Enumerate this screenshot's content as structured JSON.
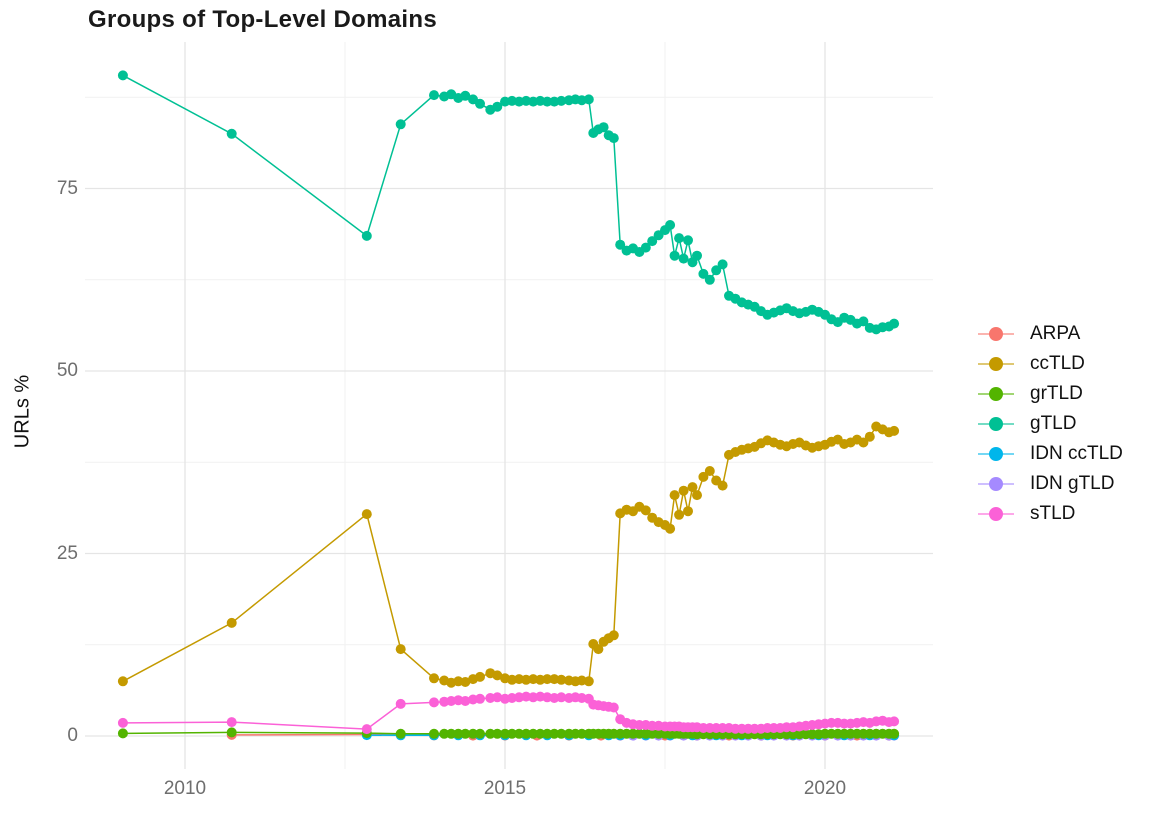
{
  "title": "Groups of Top-Level Domains",
  "axes": {
    "y_label": "URLs %",
    "y_ticks": [
      0,
      25,
      50,
      75
    ],
    "y_minor": [
      12.5,
      37.5,
      62.5,
      87.5
    ],
    "x_ticks": [
      2010,
      2015,
      2020
    ],
    "x_minor": [
      2012.5,
      2017.5
    ]
  },
  "chart_data": {
    "type": "line",
    "title": "Groups of Top-Level Domains",
    "xlabel": "",
    "ylabel": "URLs %",
    "xlim": [
      2008.43,
      2021.68
    ],
    "ylim": [
      -4.5,
      95
    ],
    "grid": true,
    "legend_position": "right",
    "series": [
      {
        "name": "ARPA",
        "color": "#F8766D",
        "x": [
          2010.73,
          2012.84,
          2013.37,
          2013.89,
          2014.5,
          2015.0,
          2015.5,
          2016.0,
          2016.5,
          2016.8,
          2017.5,
          2018.0,
          2018.5,
          2019.0,
          2019.5,
          2020.0,
          2020.5,
          2021.0
        ],
        "y": [
          0.15,
          0.2,
          0.12,
          0.08,
          0.05,
          0.05,
          0.05,
          0.05,
          0.05,
          0.05,
          0.05,
          0.05,
          0.05,
          0.05,
          0.05,
          0.05,
          0.05,
          0.05
        ]
      },
      {
        "name": "ccTLD",
        "color": "#C49A00",
        "x": [
          2009.03,
          2010.73,
          2012.84,
          2013.37,
          2013.89,
          2014.05,
          2014.16,
          2014.27,
          2014.38,
          2014.5,
          2014.61,
          2014.77,
          2014.88,
          2015.0,
          2015.11,
          2015.22,
          2015.33,
          2015.44,
          2015.55,
          2015.66,
          2015.77,
          2015.88,
          2016.0,
          2016.1,
          2016.2,
          2016.31,
          2016.38,
          2016.46,
          2016.54,
          2016.62,
          2016.7,
          2016.8,
          2016.9,
          2017.0,
          2017.1,
          2017.2,
          2017.3,
          2017.4,
          2017.5,
          2017.58,
          2017.65,
          2017.72,
          2017.79,
          2017.86,
          2017.93,
          2018.0,
          2018.1,
          2018.2,
          2018.3,
          2018.4,
          2018.5,
          2018.6,
          2018.7,
          2018.8,
          2018.9,
          2019.0,
          2019.1,
          2019.2,
          2019.3,
          2019.4,
          2019.5,
          2019.6,
          2019.7,
          2019.8,
          2019.9,
          2020.0,
          2020.1,
          2020.2,
          2020.3,
          2020.4,
          2020.5,
          2020.6,
          2020.7,
          2020.8,
          2020.9,
          2021.0,
          2021.08
        ],
        "y": [
          7.5,
          15.5,
          30.4,
          11.9,
          7.9,
          7.6,
          7.3,
          7.5,
          7.4,
          7.8,
          8.1,
          8.6,
          8.3,
          7.9,
          7.7,
          7.8,
          7.7,
          7.8,
          7.7,
          7.8,
          7.8,
          7.7,
          7.6,
          7.5,
          7.6,
          7.5,
          12.6,
          11.9,
          12.9,
          13.4,
          13.8,
          30.5,
          31.0,
          30.8,
          31.4,
          30.9,
          29.9,
          29.3,
          28.9,
          28.4,
          33.0,
          30.3,
          33.6,
          30.8,
          34.1,
          33.0,
          35.5,
          36.3,
          35.0,
          34.3,
          38.5,
          38.9,
          39.2,
          39.4,
          39.6,
          40.1,
          40.5,
          40.2,
          39.9,
          39.7,
          40.0,
          40.2,
          39.8,
          39.5,
          39.7,
          39.9,
          40.3,
          40.6,
          40.0,
          40.2,
          40.6,
          40.2,
          41.0,
          42.4,
          42.0,
          41.6,
          41.8
        ]
      },
      {
        "name": "grTLD",
        "color": "#53B400",
        "x": [
          2009.03,
          2010.73,
          2012.84,
          2013.37,
          2013.89,
          2014.05,
          2014.16,
          2014.27,
          2014.38,
          2014.5,
          2014.61,
          2014.77,
          2014.88,
          2015.0,
          2015.11,
          2015.22,
          2015.33,
          2015.44,
          2015.55,
          2015.66,
          2015.77,
          2015.88,
          2016.0,
          2016.1,
          2016.2,
          2016.31,
          2016.38,
          2016.46,
          2016.54,
          2016.62,
          2016.7,
          2016.8,
          2016.9,
          2017.0,
          2017.1,
          2017.2,
          2017.3,
          2017.4,
          2017.5,
          2017.58,
          2017.65,
          2017.72,
          2017.79,
          2017.86,
          2017.93,
          2018.0,
          2018.1,
          2018.2,
          2018.3,
          2018.4,
          2018.5,
          2018.6,
          2018.7,
          2018.8,
          2018.9,
          2019.0,
          2019.1,
          2019.2,
          2019.3,
          2019.4,
          2019.5,
          2019.6,
          2019.7,
          2019.8,
          2019.9,
          2020.0,
          2020.1,
          2020.2,
          2020.3,
          2020.4,
          2020.5,
          2020.6,
          2020.7,
          2020.8,
          2020.9,
          2021.0,
          2021.08
        ],
        "y": [
          0.35,
          0.5,
          0.4,
          0.3,
          0.3,
          0.3,
          0.3,
          0.3,
          0.3,
          0.3,
          0.3,
          0.3,
          0.3,
          0.3,
          0.3,
          0.3,
          0.3,
          0.3,
          0.3,
          0.3,
          0.3,
          0.3,
          0.3,
          0.3,
          0.3,
          0.3,
          0.3,
          0.3,
          0.3,
          0.3,
          0.3,
          0.3,
          0.3,
          0.3,
          0.3,
          0.3,
          0.3,
          0.3,
          0.3,
          0.3,
          0.3,
          0.3,
          0.3,
          0.3,
          0.3,
          0.25,
          0.25,
          0.25,
          0.25,
          0.25,
          0.25,
          0.25,
          0.25,
          0.25,
          0.25,
          0.25,
          0.25,
          0.25,
          0.25,
          0.25,
          0.25,
          0.25,
          0.25,
          0.25,
          0.25,
          0.3,
          0.3,
          0.3,
          0.3,
          0.3,
          0.3,
          0.3,
          0.3,
          0.3,
          0.3,
          0.3,
          0.3
        ]
      },
      {
        "name": "gTLD",
        "color": "#00C094",
        "x": [
          2009.03,
          2010.73,
          2012.84,
          2013.37,
          2013.89,
          2014.05,
          2014.16,
          2014.27,
          2014.38,
          2014.5,
          2014.61,
          2014.77,
          2014.88,
          2015.0,
          2015.11,
          2015.22,
          2015.33,
          2015.44,
          2015.55,
          2015.66,
          2015.77,
          2015.88,
          2016.0,
          2016.1,
          2016.2,
          2016.31,
          2016.38,
          2016.46,
          2016.54,
          2016.62,
          2016.7,
          2016.8,
          2016.9,
          2017.0,
          2017.1,
          2017.2,
          2017.3,
          2017.4,
          2017.5,
          2017.58,
          2017.65,
          2017.72,
          2017.79,
          2017.86,
          2017.93,
          2018.0,
          2018.1,
          2018.2,
          2018.3,
          2018.4,
          2018.5,
          2018.6,
          2018.7,
          2018.8,
          2018.9,
          2019.0,
          2019.1,
          2019.2,
          2019.3,
          2019.4,
          2019.5,
          2019.6,
          2019.7,
          2019.8,
          2019.9,
          2020.0,
          2020.1,
          2020.2,
          2020.3,
          2020.4,
          2020.5,
          2020.6,
          2020.7,
          2020.8,
          2020.9,
          2021.0,
          2021.08
        ],
        "y": [
          90.5,
          82.5,
          68.5,
          83.8,
          87.8,
          87.6,
          87.9,
          87.4,
          87.7,
          87.2,
          86.6,
          85.8,
          86.2,
          86.9,
          87.0,
          86.9,
          87.0,
          86.9,
          87.0,
          86.9,
          86.9,
          87.0,
          87.1,
          87.2,
          87.1,
          87.2,
          82.6,
          83.1,
          83.4,
          82.3,
          81.9,
          67.3,
          66.5,
          66.8,
          66.3,
          66.9,
          67.8,
          68.6,
          69.3,
          70.0,
          65.8,
          68.2,
          65.4,
          67.9,
          64.9,
          65.8,
          63.3,
          62.5,
          63.8,
          64.6,
          60.3,
          59.9,
          59.4,
          59.1,
          58.8,
          58.2,
          57.7,
          58.0,
          58.3,
          58.6,
          58.2,
          57.9,
          58.1,
          58.4,
          58.1,
          57.7,
          57.1,
          56.7,
          57.3,
          57.0,
          56.5,
          56.8,
          55.9,
          55.7,
          56.0,
          56.1,
          56.5
        ]
      },
      {
        "name": "IDN ccTLD",
        "color": "#00B6EB",
        "x": [
          2012.84,
          2013.37,
          2013.89,
          2014.27,
          2014.61,
          2015.0,
          2015.33,
          2015.66,
          2016.0,
          2016.31,
          2016.62,
          2016.8,
          2017.2,
          2017.58,
          2017.93,
          2018.3,
          2018.7,
          2019.1,
          2019.5,
          2019.9,
          2020.3,
          2020.7,
          2021.08
        ],
        "y": [
          0.12,
          0.1,
          0.1,
          0.1,
          0.1,
          0.1,
          0.1,
          0.1,
          0.1,
          0.1,
          0.1,
          0.1,
          0.1,
          0.1,
          0.1,
          0.1,
          0.1,
          0.1,
          0.1,
          0.1,
          0.1,
          0.1,
          0.1
        ]
      },
      {
        "name": "IDN gTLD",
        "color": "#A58AFF",
        "x": [
          2016.8,
          2017.0,
          2017.2,
          2017.4,
          2017.58,
          2017.79,
          2018.0,
          2018.2,
          2018.4,
          2018.6,
          2018.8,
          2019.0,
          2019.2,
          2019.4,
          2019.6,
          2019.8,
          2020.0,
          2020.2,
          2020.4,
          2020.6,
          2020.8,
          2021.0,
          2021.08
        ],
        "y": [
          0.05,
          0.05,
          0.05,
          0.05,
          0.05,
          0.05,
          0.05,
          0.05,
          0.05,
          0.05,
          0.05,
          0.05,
          0.05,
          0.05,
          0.05,
          0.05,
          0.05,
          0.05,
          0.05,
          0.05,
          0.05,
          0.05,
          0.05
        ]
      },
      {
        "name": "sTLD",
        "color": "#FB61D7",
        "x": [
          2009.03,
          2010.73,
          2012.84,
          2013.37,
          2013.89,
          2014.05,
          2014.16,
          2014.27,
          2014.38,
          2014.5,
          2014.61,
          2014.77,
          2014.88,
          2015.0,
          2015.11,
          2015.22,
          2015.33,
          2015.44,
          2015.55,
          2015.66,
          2015.77,
          2015.88,
          2016.0,
          2016.1,
          2016.2,
          2016.31,
          2016.38,
          2016.46,
          2016.54,
          2016.62,
          2016.7,
          2016.8,
          2016.9,
          2017.0,
          2017.1,
          2017.2,
          2017.3,
          2017.4,
          2017.5,
          2017.58,
          2017.65,
          2017.72,
          2017.79,
          2017.86,
          2017.93,
          2018.0,
          2018.1,
          2018.2,
          2018.3,
          2018.4,
          2018.5,
          2018.6,
          2018.7,
          2018.8,
          2018.9,
          2019.0,
          2019.1,
          2019.2,
          2019.3,
          2019.4,
          2019.5,
          2019.6,
          2019.7,
          2019.8,
          2019.9,
          2020.0,
          2020.1,
          2020.2,
          2020.3,
          2020.4,
          2020.5,
          2020.6,
          2020.7,
          2020.8,
          2020.9,
          2021.0,
          2021.08
        ],
        "y": [
          1.8,
          1.9,
          0.95,
          4.4,
          4.6,
          4.7,
          4.8,
          4.9,
          4.8,
          5.0,
          5.1,
          5.2,
          5.3,
          5.1,
          5.2,
          5.3,
          5.4,
          5.3,
          5.4,
          5.3,
          5.2,
          5.3,
          5.2,
          5.3,
          5.2,
          5.1,
          4.3,
          4.2,
          4.1,
          4.0,
          3.9,
          2.3,
          1.8,
          1.6,
          1.5,
          1.5,
          1.4,
          1.4,
          1.3,
          1.3,
          1.3,
          1.3,
          1.2,
          1.2,
          1.2,
          1.2,
          1.1,
          1.1,
          1.1,
          1.1,
          1.1,
          1.0,
          1.0,
          1.0,
          1.0,
          1.0,
          1.1,
          1.1,
          1.1,
          1.2,
          1.2,
          1.3,
          1.4,
          1.5,
          1.6,
          1.7,
          1.8,
          1.8,
          1.7,
          1.7,
          1.8,
          1.9,
          1.8,
          2.0,
          2.1,
          1.9,
          2.0
        ]
      }
    ]
  }
}
